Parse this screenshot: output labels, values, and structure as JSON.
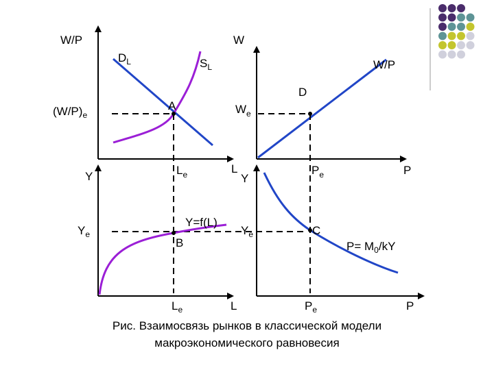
{
  "palette": {
    "curve_purple": "#9b1fd6",
    "curve_blue": "#2146c7",
    "axis": "#000000",
    "squares": [
      "#4a2c6b",
      "#5e9496",
      "#c3c52e",
      "#d0d0dc"
    ]
  },
  "quadrant_labor": {
    "y_axis": "W/P",
    "demand": "D",
    "demand_sub": "L",
    "supply": "S",
    "supply_sub": "L",
    "equilibrium_point": "A",
    "wage_eq": "(W/P)",
    "wage_eq_sub": "e",
    "employment_eq": "L",
    "employment_eq_sub": "e",
    "x_axis": "L"
  },
  "quadrant_wage": {
    "y_axis": "W",
    "line_label": "W/P",
    "line_point": "D",
    "wage_eq": "W",
    "wage_eq_sub": "e",
    "price_eq": "P",
    "price_eq_sub": "e",
    "x_axis": "P"
  },
  "quadrant_production": {
    "y_axis": "Y",
    "function": "Y=f(L)",
    "point": "B",
    "output_eq": "Y",
    "output_eq_sub": "e",
    "employment_eq": "L",
    "employment_eq_sub": "e",
    "x_axis": "L"
  },
  "quadrant_money": {
    "y_axis": "Y",
    "output_eq": "Y",
    "output_eq_sub": "e",
    "point": "C",
    "equation": "P= M",
    "equation_sub": "0",
    "equation_tail": "/kY",
    "price_eq": "P",
    "price_eq_sub": "e",
    "x_axis": "P"
  },
  "caption": {
    "line1": "Рис. Взаимосвязь рынков в классической модели",
    "line2": "макроэкономического равновесия"
  }
}
